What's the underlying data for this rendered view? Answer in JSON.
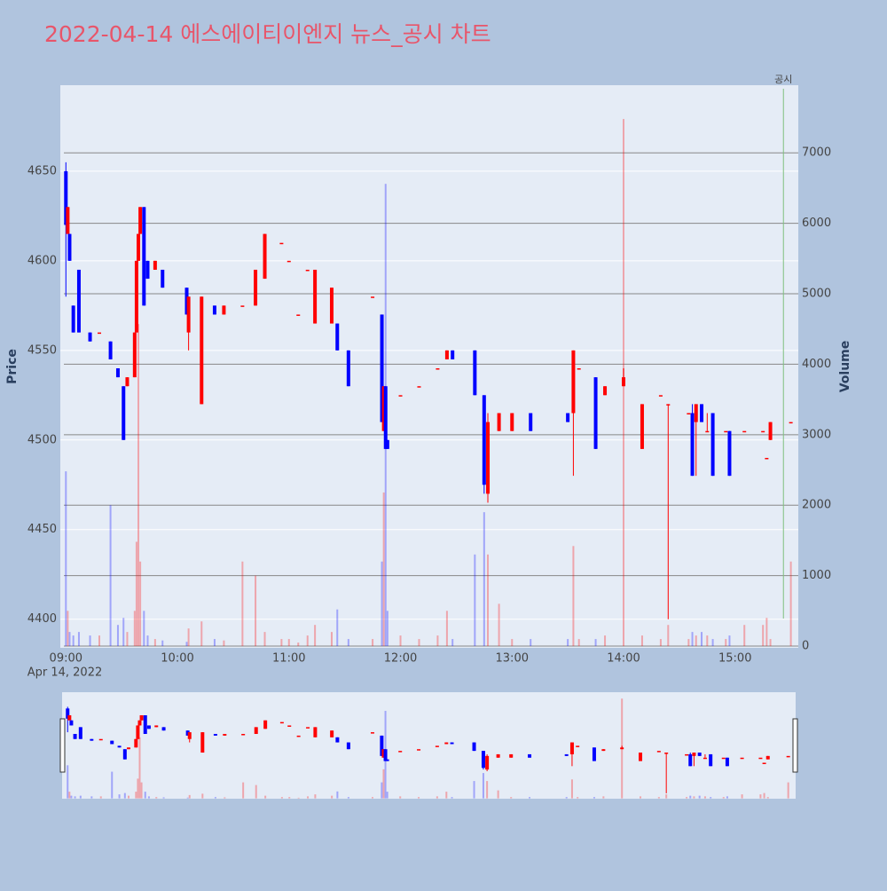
{
  "chart_data": {
    "type": "candlestick",
    "title": "2022-04-14 에스에이티이엔지 뉴스_공시 차트",
    "y_label": "Price",
    "y2_label": "Volume",
    "x_date_label": "Apr 14, 2022",
    "increasing_color": "#ff0000",
    "decreasing_color": "#0000ff",
    "xlim": [
      "2022-04-14 08:57",
      "2022-04-14 15:34"
    ],
    "xticks": [
      {
        "value": "2022-04-14 09:00",
        "label": "09:00"
      },
      {
        "value": "2022-04-14 10:00",
        "label": "10:00"
      },
      {
        "value": "2022-04-14 11:00",
        "label": "11:00"
      },
      {
        "value": "2022-04-14 12:00",
        "label": "12:00"
      },
      {
        "value": "2022-04-14 13:00",
        "label": "13:00"
      },
      {
        "value": "2022-04-14 14:00",
        "label": "14:00"
      },
      {
        "value": "2022-04-14 15:00",
        "label": "15:00"
      }
    ],
    "ylim": [
      4384,
      4698
    ],
    "yticks": [
      4400,
      4450,
      4500,
      4550,
      4600,
      4650
    ],
    "y2lim": [
      -25,
      7960
    ],
    "y2ticks": [
      0,
      1000,
      2000,
      3000,
      4000,
      5000,
      6000,
      7000
    ],
    "annotation": {
      "x": "2022-04-14 15:26",
      "text": "공시",
      "color": "#7fbf7f"
    },
    "x": [
      "2022-04-14 09:00",
      "2022-04-14 09:01",
      "2022-04-14 09:02",
      "2022-04-14 09:04",
      "2022-04-14 09:07",
      "2022-04-14 09:13",
      "2022-04-14 09:18",
      "2022-04-14 09:24",
      "2022-04-14 09:28",
      "2022-04-14 09:31",
      "2022-04-14 09:33",
      "2022-04-14 09:37",
      "2022-04-14 09:38",
      "2022-04-14 09:39",
      "2022-04-14 09:40",
      "2022-04-14 09:42",
      "2022-04-14 09:44",
      "2022-04-14 09:48",
      "2022-04-14 09:52",
      "2022-04-14 10:05",
      "2022-04-14 10:06",
      "2022-04-14 10:13",
      "2022-04-14 10:20",
      "2022-04-14 10:25",
      "2022-04-14 10:35",
      "2022-04-14 10:42",
      "2022-04-14 10:47",
      "2022-04-14 10:56",
      "2022-04-14 11:00",
      "2022-04-14 11:05",
      "2022-04-14 11:10",
      "2022-04-14 11:14",
      "2022-04-14 11:23",
      "2022-04-14 11:26",
      "2022-04-14 11:32",
      "2022-04-14 11:45",
      "2022-04-14 11:50",
      "2022-04-14 11:51",
      "2022-04-14 11:52",
      "2022-04-14 11:53",
      "2022-04-14 12:00",
      "2022-04-14 12:10",
      "2022-04-14 12:20",
      "2022-04-14 12:25",
      "2022-04-14 12:28",
      "2022-04-14 12:40",
      "2022-04-14 12:45",
      "2022-04-14 12:47",
      "2022-04-14 12:53",
      "2022-04-14 13:00",
      "2022-04-14 13:10",
      "2022-04-14 13:30",
      "2022-04-14 13:33",
      "2022-04-14 13:36",
      "2022-04-14 13:45",
      "2022-04-14 13:50",
      "2022-04-14 14:00",
      "2022-04-14 14:10",
      "2022-04-14 14:20",
      "2022-04-14 14:24",
      "2022-04-14 14:35",
      "2022-04-14 14:37",
      "2022-04-14 14:39",
      "2022-04-14 14:42",
      "2022-04-14 14:45",
      "2022-04-14 14:48",
      "2022-04-14 14:55",
      "2022-04-14 14:57",
      "2022-04-14 15:05",
      "2022-04-14 15:15",
      "2022-04-14 15:17",
      "2022-04-14 15:19",
      "2022-04-14 15:30"
    ],
    "open": [
      4650,
      4615,
      4615,
      4575,
      4595,
      4560,
      4560,
      4555,
      4540,
      4530,
      4530,
      4535,
      4560,
      4600,
      4615,
      4630,
      4600,
      4595,
      4595,
      4585,
      4560,
      4520,
      4575,
      4570,
      4575,
      4575,
      4590,
      4610,
      4600,
      4570,
      4595,
      4565,
      4565,
      4565,
      4550,
      4580,
      4570,
      4505,
      4530,
      4500,
      4525,
      4530,
      4540,
      4545,
      4550,
      4550,
      4525,
      4470,
      4505,
      4505,
      4515,
      4515,
      4515,
      4540,
      4535,
      4525,
      4530,
      4495,
      4525,
      4520,
      4515,
      4515,
      4510,
      4520,
      4505,
      4515,
      4505,
      4505,
      4505,
      4505,
      4490,
      4500,
      4510
    ],
    "high": [
      4655,
      4630,
      4615,
      4575,
      4595,
      4560,
      4560,
      4555,
      4540,
      4530,
      4535,
      4560,
      4600,
      4615,
      4630,
      4630,
      4600,
      4600,
      4595,
      4585,
      4580,
      4580,
      4575,
      4575,
      4575,
      4595,
      4615,
      4610,
      4600,
      4570,
      4595,
      4595,
      4585,
      4565,
      4550,
      4580,
      4570,
      4530,
      4530,
      4500,
      4525,
      4530,
      4540,
      4550,
      4550,
      4550,
      4525,
      4515,
      4515,
      4515,
      4515,
      4515,
      4550,
      4540,
      4535,
      4530,
      4540,
      4520,
      4525,
      4520,
      4515,
      4520,
      4520,
      4520,
      4515,
      4515,
      4505,
      4505,
      4505,
      4505,
      4490,
      4510,
      4510
    ],
    "low": [
      4580,
      4615,
      4600,
      4560,
      4560,
      4555,
      4560,
      4545,
      4535,
      4500,
      4530,
      4535,
      4560,
      4600,
      4615,
      4575,
      4590,
      4595,
      4585,
      4570,
      4550,
      4520,
      4570,
      4570,
      4575,
      4575,
      4590,
      4610,
      4600,
      4570,
      4595,
      4565,
      4565,
      4550,
      4530,
      4580,
      4510,
      4505,
      4495,
      4495,
      4525,
      4530,
      4540,
      4545,
      4545,
      4525,
      4470,
      4465,
      4505,
      4505,
      4505,
      4510,
      4480,
      4540,
      4495,
      4525,
      4530,
      4495,
      4525,
      4400,
      4515,
      4480,
      4480,
      4510,
      4505,
      4480,
      4505,
      4480,
      4505,
      4505,
      4490,
      4500,
      4510
    ],
    "close": [
      4620,
      4630,
      4600,
      4560,
      4560,
      4555,
      4560,
      4545,
      4535,
      4500,
      4535,
      4560,
      4600,
      4615,
      4630,
      4575,
      4590,
      4600,
      4585,
      4570,
      4580,
      4580,
      4570,
      4575,
      4575,
      4595,
      4615,
      4610,
      4600,
      4570,
      4595,
      4595,
      4585,
      4550,
      4530,
      4580,
      4510,
      4530,
      4495,
      4495,
      4525,
      4530,
      4540,
      4550,
      4545,
      4525,
      4475,
      4510,
      4515,
      4515,
      4505,
      4510,
      4550,
      4540,
      4495,
      4530,
      4535,
      4520,
      4525,
      4520,
      4515,
      4480,
      4520,
      4510,
      4505,
      4480,
      4505,
      4480,
      4505,
      4505,
      4490,
      4510,
      4510
    ],
    "volume": [
      2480,
      500,
      200,
      150,
      200,
      150,
      150,
      2000,
      300,
      400,
      200,
      500,
      1480,
      4570,
      1200,
      500,
      150,
      100,
      80,
      60,
      250,
      350,
      100,
      80,
      1200,
      1000,
      200,
      100,
      100,
      50,
      150,
      300,
      200,
      520,
      100,
      100,
      1200,
      2180,
      6560,
      500,
      150,
      100,
      150,
      500,
      100,
      1300,
      1900,
      1300,
      600,
      100,
      100,
      100,
      1420,
      100,
      100,
      150,
      7480,
      150,
      100,
      300,
      100,
      200,
      150,
      200,
      150,
      100,
      100,
      150,
      300,
      300,
      400,
      100,
      1200
    ]
  }
}
